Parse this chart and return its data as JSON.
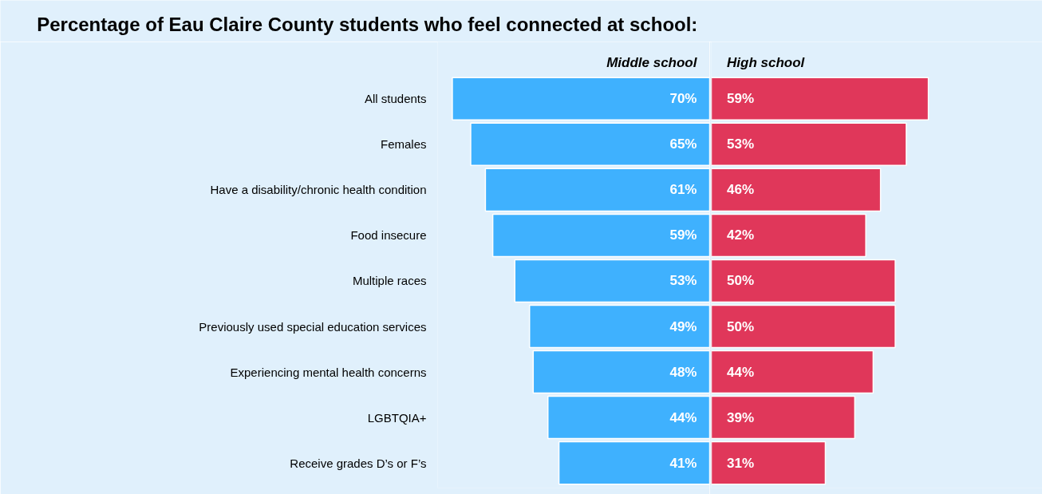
{
  "chart_data": [
    {
      "type": "bar",
      "orientation": "horizontal",
      "title": "Percentage of Eau Claire County students who feel connected at school:",
      "categories": [
        "All students",
        "Females",
        "Have a disability/chronic health condition",
        "Food insecure",
        "Multiple races",
        "Previously used special education services",
        "Experiencing mental health concerns",
        "LGBTQIA+",
        "Receive grades D’s or F’s"
      ],
      "series": [
        {
          "name": "Middle school",
          "color": "#3fb1fe",
          "values": [
            70,
            65,
            61,
            59,
            53,
            49,
            48,
            44,
            41
          ],
          "value_labels": [
            "70%",
            "65%",
            "61%",
            "59%",
            "53%",
            "49%",
            "48%",
            "44%",
            "41%"
          ]
        }
      ],
      "xlim": [
        74,
        0
      ],
      "tick_labels": "y",
      "grid": false
    },
    {
      "type": "bar",
      "orientation": "horizontal",
      "categories": [
        null,
        null,
        null,
        null,
        null,
        null,
        null,
        null,
        null
      ],
      "series": [
        {
          "name": "High school",
          "color": "#e0375a",
          "values": [
            59,
            53,
            46,
            42,
            50,
            50,
            44,
            39,
            31
          ],
          "value_labels": [
            "59%",
            "53%",
            "46%",
            "42%",
            "50%",
            "50%",
            "44%",
            "39%",
            "31%"
          ]
        }
      ],
      "xlim": [
        0,
        90
      ],
      "tick_labels": false,
      "grid": false
    }
  ]
}
